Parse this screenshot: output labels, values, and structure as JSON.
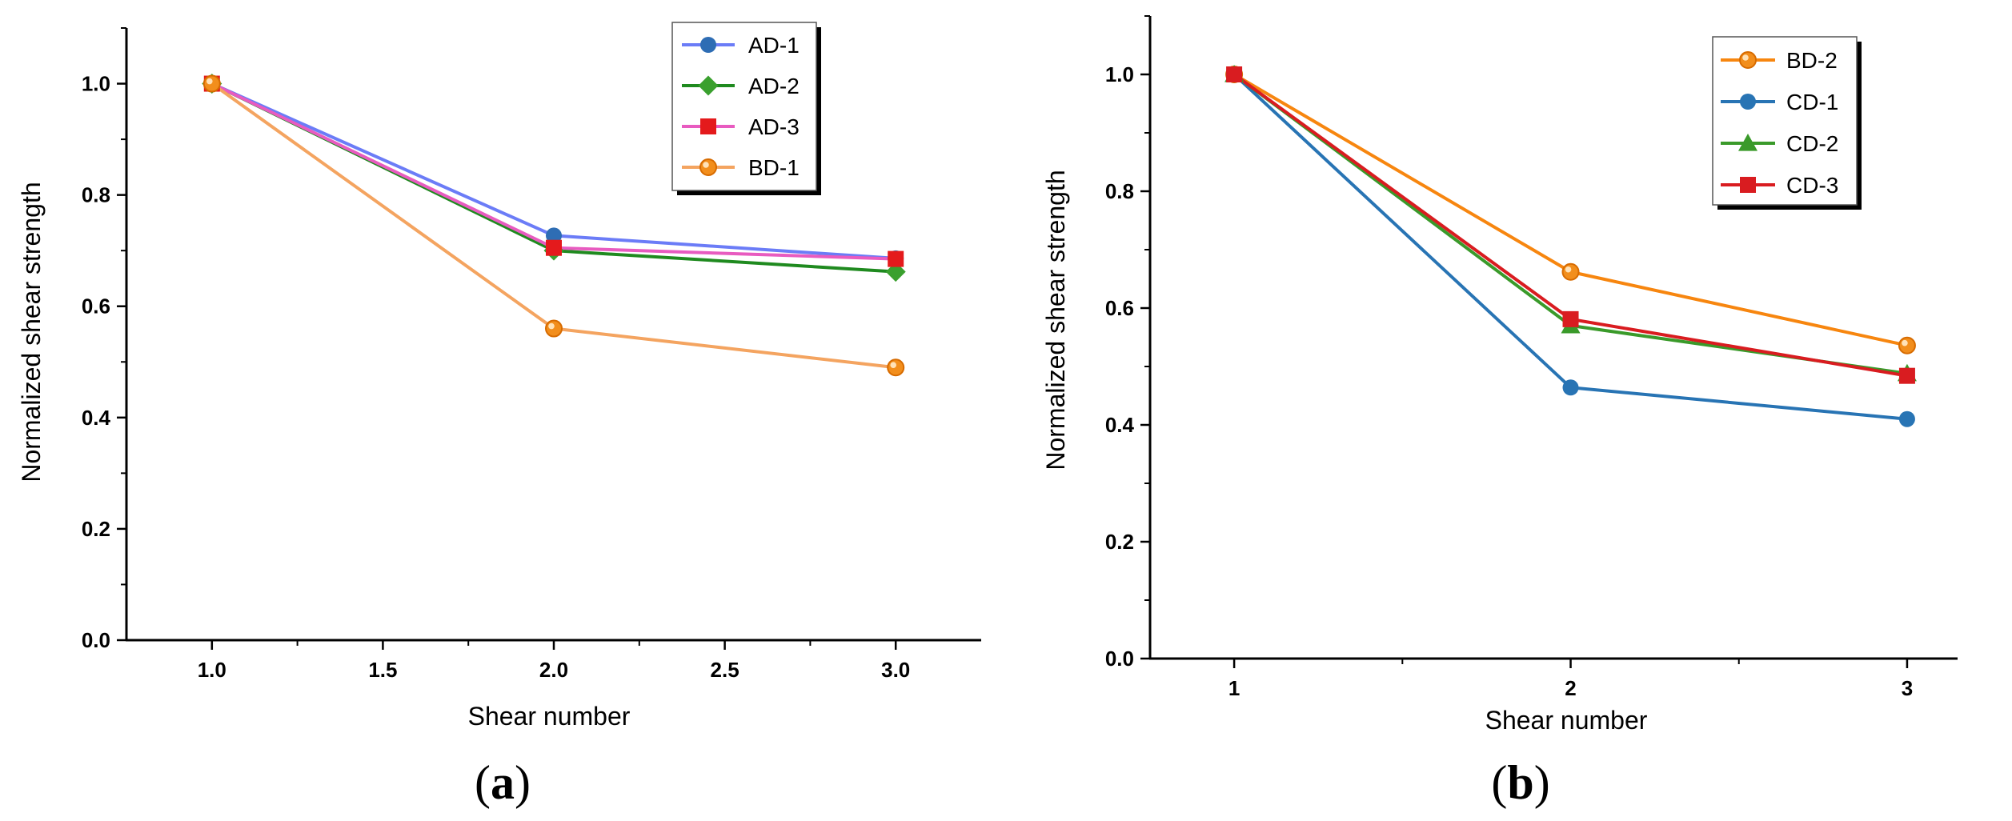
{
  "chart_data": [
    {
      "type": "line",
      "panel_label": "a",
      "xlabel": "Shear number",
      "ylabel": "Normalized shear strength",
      "xlim": [
        0.75,
        3.25
      ],
      "ylim": [
        0.0,
        1.1
      ],
      "xticks": [
        1.0,
        1.5,
        2.0,
        2.5,
        3.0
      ],
      "xtick_labels": [
        "1.0",
        "1.5",
        "2.0",
        "2.5",
        "3.0"
      ],
      "yticks": [
        0.0,
        0.2,
        0.4,
        0.6,
        0.8,
        1.0
      ],
      "ytick_labels": [
        "0.0",
        "0.2",
        "0.4",
        "0.6",
        "0.8",
        "1.0"
      ],
      "legend_position": "top-right",
      "x": [
        1,
        2,
        3
      ],
      "series": [
        {
          "name": "AD-1",
          "values": [
            1.0,
            0.727,
            0.686
          ],
          "color": "#6b7cf7",
          "marker_color": "#2e6db4",
          "marker": "circle"
        },
        {
          "name": "AD-2",
          "values": [
            1.0,
            0.7,
            0.662
          ],
          "color": "#1f8a1f",
          "marker_color": "#3aa02e",
          "marker": "diamond"
        },
        {
          "name": "AD-3",
          "values": [
            1.0,
            0.705,
            0.685
          ],
          "color": "#e85bc0",
          "marker_color": "#e41a1c",
          "marker": "square"
        },
        {
          "name": "BD-1",
          "values": [
            1.0,
            0.56,
            0.49
          ],
          "color": "#f4a460",
          "marker_color": "#f28e1c",
          "marker": "sphere"
        }
      ]
    },
    {
      "type": "line",
      "panel_label": "b",
      "xlabel": "Shear number",
      "ylabel": "Normalized shear strength",
      "xlim": [
        0.75,
        3.15
      ],
      "ylim": [
        0.0,
        1.1
      ],
      "xticks": [
        1,
        2,
        3
      ],
      "xtick_labels": [
        "1",
        "2",
        "3"
      ],
      "yticks": [
        0.0,
        0.2,
        0.4,
        0.6,
        0.8,
        1.0
      ],
      "ytick_labels": [
        "0.0",
        "0.2",
        "0.4",
        "0.6",
        "0.8",
        "1.0"
      ],
      "legend_position": "top-right",
      "x": [
        1,
        2,
        3
      ],
      "series": [
        {
          "name": "BD-2",
          "values": [
            1.0,
            0.662,
            0.536
          ],
          "color": "#f7860f",
          "marker_color": "#f28e1c",
          "marker": "sphere"
        },
        {
          "name": "CD-1",
          "values": [
            1.0,
            0.464,
            0.41
          ],
          "color": "#2874b4",
          "marker_color": "#2874b4",
          "marker": "circle"
        },
        {
          "name": "CD-2",
          "values": [
            1.0,
            0.57,
            0.488
          ],
          "color": "#3a9a2a",
          "marker_color": "#3a9a2a",
          "marker": "triangle"
        },
        {
          "name": "CD-3",
          "values": [
            1.0,
            0.581,
            0.484
          ],
          "color": "#d91c20",
          "marker_color": "#d91c20",
          "marker": "square"
        }
      ]
    }
  ]
}
